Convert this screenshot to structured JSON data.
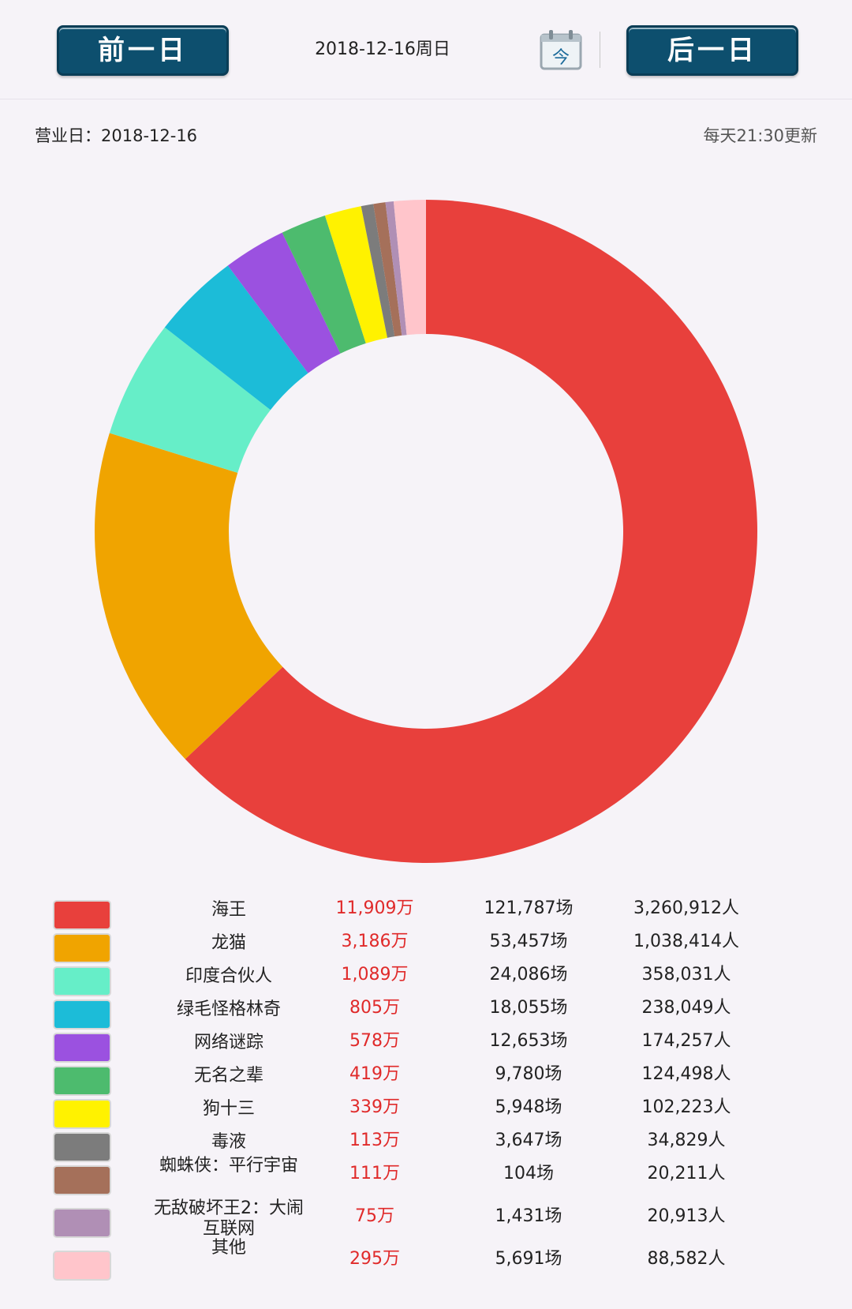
{
  "header": {
    "prev_label": "前一日",
    "next_label": "后一日",
    "date_label": "2018-12-16周日",
    "calendar_label": "今"
  },
  "info": {
    "business_day": "营业日：2018-12-16",
    "update_note": "每天21:30更新"
  },
  "chart_data": {
    "type": "pie",
    "subtype": "donut",
    "legend_position": "bottom",
    "categories": [
      "海王",
      "龙猫",
      "印度合伙人",
      "绿毛怪格林奇",
      "网络谜踪",
      "无名之辈",
      "狗十三",
      "毒液",
      "蜘蛛侠：平行宇宙",
      "无敌破坏王2：大闹互联网",
      "其他"
    ],
    "values": [
      11909,
      3186,
      1089,
      805,
      578,
      419,
      339,
      113,
      111,
      75,
      295
    ],
    "box_office_labels": [
      "11,909万",
      "3,186万",
      "1,089万",
      "805万",
      "578万",
      "419万",
      "339万",
      "113万",
      "111万",
      "75万",
      "295万"
    ],
    "shows_labels": [
      "121,787场",
      "53,457场",
      "24,086场",
      "18,055场",
      "12,653场",
      "9,780场",
      "5,948场",
      "3,647场",
      "104场",
      "1,431场",
      "5,691场"
    ],
    "audience_labels": [
      "3,260,912人",
      "1,038,414人",
      "358,031人",
      "238,049人",
      "174,257人",
      "124,498人",
      "102,223人",
      "34,829人",
      "20,211人",
      "20,913人",
      "88,582人"
    ],
    "colors": [
      "#e8403c",
      "#f0a400",
      "#66eec8",
      "#1cbcd8",
      "#9b51e0",
      "#4dbb6e",
      "#fff200",
      "#7c7c7c",
      "#a5705a",
      "#b08fb5",
      "#ffc5cb"
    ]
  }
}
